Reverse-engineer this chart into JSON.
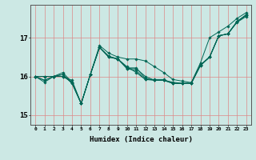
{
  "xlabel": "Humidex (Indice chaleur)",
  "background_color": "#cce8e4",
  "grid_color": "#dd8888",
  "line_color": "#006655",
  "xlim": [
    -0.5,
    23.5
  ],
  "ylim": [
    14.75,
    17.85
  ],
  "yticks": [
    15,
    16,
    17
  ],
  "xticks": [
    0,
    1,
    2,
    3,
    4,
    5,
    6,
    7,
    8,
    9,
    10,
    11,
    12,
    13,
    14,
    15,
    16,
    17,
    18,
    19,
    20,
    21,
    22,
    23
  ],
  "series": [
    [
      16.0,
      15.9,
      16.0,
      16.0,
      15.85,
      15.3,
      16.05,
      16.75,
      16.5,
      16.45,
      16.2,
      16.2,
      16.0,
      15.9,
      15.9,
      15.85,
      15.82,
      15.82,
      16.3,
      16.5,
      17.05,
      17.1,
      17.4,
      17.55
    ],
    [
      16.0,
      16.0,
      16.0,
      16.0,
      15.9,
      15.3,
      16.05,
      16.8,
      16.6,
      16.5,
      16.45,
      16.45,
      16.4,
      16.25,
      16.1,
      15.92,
      15.88,
      15.84,
      16.35,
      17.0,
      17.15,
      17.3,
      17.5,
      17.65
    ],
    [
      16.0,
      16.0,
      16.0,
      16.1,
      15.85,
      15.3,
      16.05,
      16.75,
      16.5,
      16.45,
      16.25,
      16.1,
      15.92,
      15.92,
      15.92,
      15.82,
      15.82,
      15.82,
      16.3,
      16.5,
      17.05,
      17.1,
      17.42,
      17.6
    ],
    [
      16.0,
      15.85,
      16.0,
      16.05,
      15.82,
      15.3,
      16.05,
      16.75,
      16.52,
      16.45,
      16.22,
      16.22,
      15.95,
      15.9,
      15.9,
      15.82,
      15.82,
      15.82,
      16.28,
      16.5,
      17.05,
      17.1,
      17.42,
      17.58
    ],
    [
      16.0,
      15.9,
      16.0,
      16.05,
      15.82,
      15.3,
      16.05,
      16.75,
      16.52,
      16.45,
      16.2,
      16.15,
      15.92,
      15.9,
      15.9,
      15.82,
      15.82,
      15.82,
      16.28,
      16.5,
      17.05,
      17.1,
      17.42,
      17.58
    ]
  ]
}
